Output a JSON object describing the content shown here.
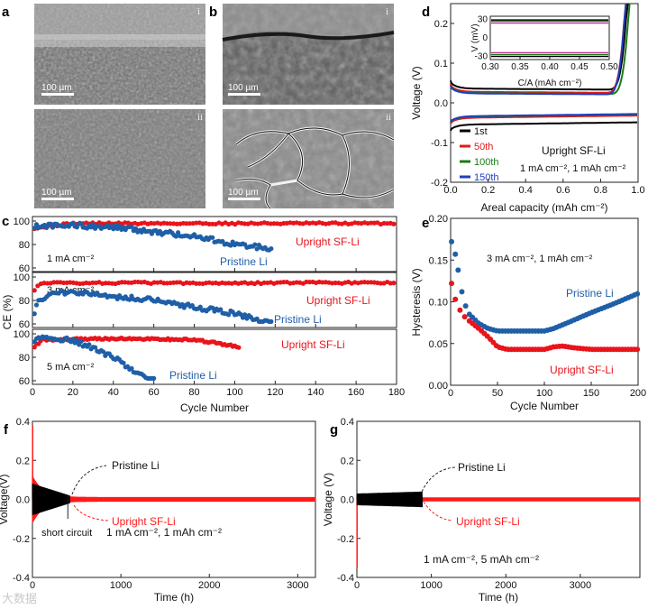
{
  "panels": {
    "a": {
      "letter": "a",
      "top_label": "i",
      "bottom_label": "ii",
      "scale_top": "100 µm",
      "scale_bottom": "100 µm"
    },
    "b": {
      "letter": "b",
      "top_label": "i",
      "bottom_label": "ii",
      "scale_top": "100 µm",
      "scale_bottom": "100 µm"
    }
  },
  "chart_data": [
    {
      "id": "d",
      "letter": "d",
      "type": "line",
      "xlabel": "Areal capacity (mAh cm⁻²)",
      "ylabel": "Voltage (V)",
      "xlim": [
        0,
        1.0
      ],
      "ylim": [
        -0.2,
        0.25
      ],
      "xticks": [
        "0.0",
        "0.2",
        "0.4",
        "0.6",
        "0.8",
        "1.0"
      ],
      "yticks": [
        "-0.2",
        "-0.1",
        "0.0",
        "0.1",
        "0.2"
      ],
      "annotation": "Upright SF-Li",
      "condition": "1 mA cm⁻², 1 mAh cm⁻²",
      "legend_position": "bottom-left",
      "series": [
        {
          "name": "1st",
          "color": "#000000",
          "plateau_charge": 0.036,
          "plateau_discharge": -0.055,
          "end_capacity": 0.95
        },
        {
          "name": "50th",
          "color": "#e31a1c",
          "plateau_charge": 0.028,
          "plateau_discharge": -0.038,
          "end_capacity": 0.94
        },
        {
          "name": "100th",
          "color": "#1a7a1a",
          "plateau_charge": 0.025,
          "plateau_discharge": -0.035,
          "end_capacity": 0.96
        },
        {
          "name": "150th",
          "color": "#1f3fbf",
          "plateau_charge": 0.024,
          "plateau_discharge": -0.034,
          "end_capacity": 0.94
        }
      ],
      "inset": {
        "xlabel": "C/A (mAh cm⁻²)",
        "ylabel": "V (mV)",
        "xlim": [
          0.3,
          0.5
        ],
        "ylim": [
          -35,
          35
        ],
        "xticks": [
          "0.30",
          "0.35",
          "0.40",
          "0.45",
          "0.50"
        ],
        "yticks": [
          "30",
          "0",
          "-30"
        ],
        "levels_mV": [
          {
            "color": "#000000",
            "values": [
              29,
              -30
            ]
          },
          {
            "color": "#1a7a1a",
            "values": [
              27,
              -27
            ]
          },
          {
            "color": "#c0309a",
            "values": [
              24,
              -24
            ]
          }
        ]
      }
    },
    {
      "id": "c",
      "letter": "c",
      "type": "scatter",
      "ylabel": "CE (%)",
      "xlabel": "Cycle Number",
      "xlim": [
        0,
        180
      ],
      "xticks": [
        "0",
        "20",
        "40",
        "60",
        "80",
        "100",
        "120",
        "140",
        "160",
        "180"
      ],
      "subplots": [
        {
          "condition": "1 mA cm⁻²",
          "ylim": [
            60,
            100
          ],
          "yticks": [
            "100",
            "80",
            "60"
          ],
          "series": [
            {
              "name": "Upright SF-Li",
              "color": "#e8141c",
              "x_max": 180,
              "points": [
                [
                  0,
                  94
                ],
                [
                  20,
                  98
                ],
                [
                  60,
                  98
                ],
                [
                  100,
                  98
                ],
                [
                  150,
                  98
                ],
                [
                  180,
                  98
                ]
              ]
            },
            {
              "name": "Pristine Li",
              "color": "#1f5fa8",
              "x_max": 118,
              "points": [
                [
                  0,
                  96
                ],
                [
                  20,
                  96
                ],
                [
                  40,
                  95
                ],
                [
                  60,
                  91
                ],
                [
                  80,
                  87
                ],
                [
                  95,
                  82
                ],
                [
                  105,
                  79
                ],
                [
                  118,
                  77
                ]
              ]
            }
          ]
        },
        {
          "condition": "3 mA cm⁻²",
          "ylim": [
            60,
            100
          ],
          "yticks": [
            "100",
            "80",
            "60"
          ],
          "series": [
            {
              "name": "Upright SF-Li",
              "color": "#e8141c",
              "x_max": 180,
              "points": [
                [
                  0,
                  88
                ],
                [
                  5,
                  95
                ],
                [
                  40,
                  95
                ],
                [
                  100,
                  95
                ],
                [
                  180,
                  95
                ]
              ]
            },
            {
              "name": "Pristine Li",
              "color": "#1f5fa8",
              "x_max": 118,
              "points": [
                [
                  0,
                  66
                ],
                [
                  3,
                  80
                ],
                [
                  10,
                  86
                ],
                [
                  20,
                  88
                ],
                [
                  40,
                  83
                ],
                [
                  60,
                  81
                ],
                [
                  80,
                  74
                ],
                [
                  100,
                  69
                ],
                [
                  118,
                  60
                ]
              ]
            }
          ]
        },
        {
          "condition": "5 mA cm⁻²",
          "ylim": [
            60,
            100
          ],
          "yticks": [
            "100",
            "80",
            "60"
          ],
          "series": [
            {
              "name": "Upright SF-Li",
              "color": "#e8141c",
              "x_max": 102,
              "points": [
                [
                  0,
                  88
                ],
                [
                  5,
                  95
                ],
                [
                  40,
                  96
                ],
                [
                  80,
                  95
                ],
                [
                  102,
                  89
                ]
              ]
            },
            {
              "name": "Pristine Li",
              "color": "#1f5fa8",
              "x_max": 60,
              "points": [
                [
                  0,
                  95
                ],
                [
                  10,
                  97
                ],
                [
                  20,
                  94
                ],
                [
                  30,
                  88
                ],
                [
                  40,
                  80
                ],
                [
                  50,
                  68
                ],
                [
                  60,
                  58
                ]
              ]
            }
          ]
        }
      ]
    },
    {
      "id": "e",
      "letter": "e",
      "type": "scatter",
      "ylabel": "Hysteresis (V)",
      "xlabel": "Cycle Number",
      "xlim": [
        0,
        200
      ],
      "ylim": [
        0,
        0.2
      ],
      "xticks": [
        "0",
        "50",
        "100",
        "150",
        "200"
      ],
      "yticks": [
        "0.00",
        "0.05",
        "0.10",
        "0.15",
        "0.20"
      ],
      "condition": "3 mA cm⁻², 1 mAh cm⁻²",
      "series": [
        {
          "name": "Pristine Li",
          "color": "#1f5fa8",
          "points": [
            [
              1,
              0.172
            ],
            [
              5,
              0.157
            ],
            [
              8,
              0.138
            ],
            [
              12,
              0.112
            ],
            [
              16,
              0.095
            ],
            [
              20,
              0.085
            ],
            [
              30,
              0.074
            ],
            [
              40,
              0.068
            ],
            [
              50,
              0.065
            ],
            [
              70,
              0.065
            ],
            [
              100,
              0.065
            ],
            [
              110,
              0.068
            ],
            [
              125,
              0.075
            ],
            [
              150,
              0.087
            ],
            [
              175,
              0.098
            ],
            [
              200,
              0.11
            ]
          ]
        },
        {
          "name": "Upright SF-Li",
          "color": "#e8141c",
          "points": [
            [
              1,
              0.122
            ],
            [
              5,
              0.103
            ],
            [
              10,
              0.09
            ],
            [
              15,
              0.082
            ],
            [
              20,
              0.077
            ],
            [
              30,
              0.068
            ],
            [
              40,
              0.058
            ],
            [
              50,
              0.046
            ],
            [
              60,
              0.043
            ],
            [
              100,
              0.043
            ],
            [
              110,
              0.046
            ],
            [
              120,
              0.047
            ],
            [
              130,
              0.045
            ],
            [
              150,
              0.043
            ],
            [
              200,
              0.043
            ]
          ]
        }
      ]
    },
    {
      "id": "f",
      "letter": "f",
      "type": "line",
      "ylabel": "Voltage(V)",
      "xlabel": "Time (h)",
      "xlim": [
        0,
        3200
      ],
      "ylim": [
        -0.4,
        0.4
      ],
      "xticks": [
        "0",
        "1000",
        "2000",
        "3000"
      ],
      "yticks": [
        "-0.4",
        "-0.2",
        "0.0",
        "0.2",
        "0.4"
      ],
      "condition": "1 mA cm⁻², 1 mAh cm⁻²",
      "short_label": "short circuit",
      "short_circuit_time": 400,
      "series": [
        {
          "name": "Pristine Li",
          "color": "#000000",
          "t_end": 420,
          "amp_start": 0.08,
          "amp_end": 0.02
        },
        {
          "name": "Upright SF-Li",
          "color": "#ff1a1a",
          "t_end": 3200,
          "amp_start": 0.12,
          "amp_end": 0.012,
          "spike": 0.38
        }
      ]
    },
    {
      "id": "g",
      "letter": "g",
      "type": "line",
      "ylabel": "Voltage (V)",
      "xlabel": "Time (h)",
      "xlim": [
        0,
        3800
      ],
      "ylim": [
        -0.4,
        0.4
      ],
      "xticks": [
        "0",
        "1000",
        "2000",
        "3000"
      ],
      "yticks": [
        "-0.4",
        "-0.2",
        "0.0",
        "0.2",
        "0.4"
      ],
      "condition": "1 mA cm⁻², 5 mAh cm⁻²",
      "series": [
        {
          "name": "Pristine Li",
          "color": "#000000",
          "t_end": 880,
          "amp_start": 0.03,
          "amp_end": 0.04
        },
        {
          "name": "Upright SF-Li",
          "color": "#ff1a1a",
          "t_end": 3800,
          "amp_start": 0.02,
          "amp_end": 0.01,
          "spike": -0.35
        }
      ]
    }
  ],
  "colors": {
    "red": "#e8141c",
    "blue": "#1f5fa8",
    "black": "#000000"
  },
  "watermark": "大数据"
}
